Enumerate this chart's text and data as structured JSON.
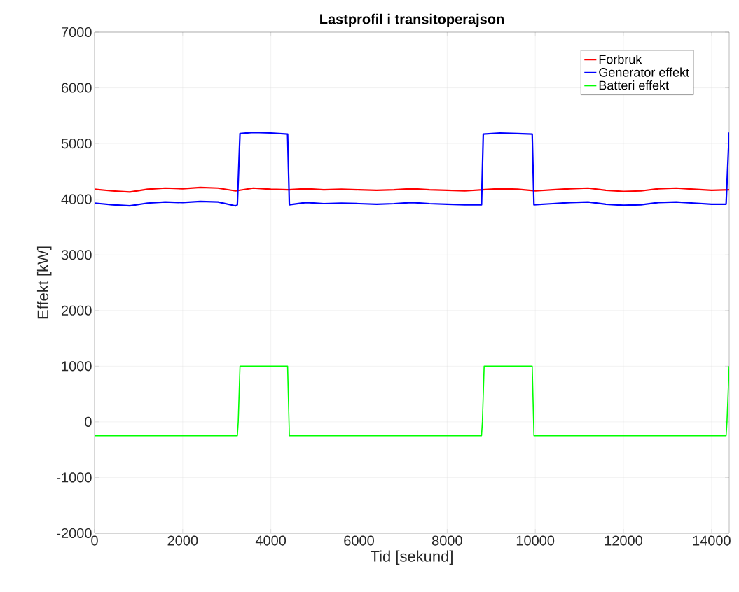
{
  "chart_data": {
    "type": "line",
    "title": "Lastprofil i transitoperajson",
    "xlabel": "Tid [sekund]",
    "ylabel": "Effekt [kW]",
    "xlim": [
      0,
      14400
    ],
    "ylim": [
      -2000,
      7000
    ],
    "xticks": [
      0,
      2000,
      4000,
      6000,
      8000,
      10000,
      12000,
      14000
    ],
    "yticks": [
      -2000,
      -1000,
      0,
      1000,
      2000,
      3000,
      4000,
      5000,
      6000,
      7000
    ],
    "grid": true,
    "legend": "top right",
    "marker": "none",
    "line_style": "solid",
    "series": [
      {
        "name": "Forbruk",
        "color": "#ff0000",
        "x": [
          0,
          400,
          800,
          1200,
          1600,
          2000,
          2400,
          2800,
          3200,
          3600,
          4000,
          4400,
          4800,
          5200,
          5600,
          6000,
          6400,
          6800,
          7200,
          7600,
          8000,
          8400,
          8800,
          9200,
          9600,
          10000,
          10400,
          10800,
          11200,
          11600,
          12000,
          12400,
          12800,
          13200,
          13600,
          14000,
          14400
        ],
        "values": [
          4180,
          4150,
          4130,
          4180,
          4200,
          4190,
          4210,
          4200,
          4150,
          4200,
          4180,
          4170,
          4190,
          4170,
          4180,
          4170,
          4160,
          4170,
          4190,
          4170,
          4160,
          4150,
          4170,
          4190,
          4180,
          4150,
          4170,
          4190,
          4200,
          4160,
          4140,
          4150,
          4190,
          4200,
          4180,
          4160,
          4170
        ]
      },
      {
        "name": "Generator effekt",
        "color": "#0000ff",
        "x": [
          0,
          400,
          800,
          1200,
          1600,
          2000,
          2400,
          2800,
          3200,
          3240,
          3300,
          3600,
          4000,
          4380,
          4420,
          4800,
          5200,
          5600,
          6000,
          6400,
          6800,
          7200,
          7600,
          8000,
          8400,
          8780,
          8820,
          9200,
          9600,
          9930,
          9970,
          10400,
          10800,
          11200,
          11600,
          12000,
          12400,
          12800,
          13200,
          13600,
          14000,
          14330,
          14400
        ],
        "values": [
          3930,
          3900,
          3880,
          3930,
          3950,
          3940,
          3960,
          3950,
          3880,
          3900,
          5180,
          5200,
          5190,
          5170,
          3900,
          3940,
          3920,
          3930,
          3920,
          3910,
          3920,
          3940,
          3920,
          3910,
          3900,
          3900,
          5170,
          5190,
          5180,
          5170,
          3900,
          3920,
          3940,
          3950,
          3910,
          3890,
          3900,
          3940,
          3950,
          3930,
          3910,
          3910,
          5200
        ]
      },
      {
        "name": "Batteri effekt",
        "color": "#00ff00",
        "x": [
          0,
          3240,
          3260,
          3300,
          4380,
          4420,
          8780,
          8800,
          8840,
          9930,
          9970,
          14330,
          14350,
          14400
        ],
        "values": [
          -250,
          -250,
          0,
          1000,
          1000,
          -250,
          -250,
          0,
          1000,
          1000,
          -250,
          -250,
          0,
          1000
        ]
      }
    ]
  }
}
